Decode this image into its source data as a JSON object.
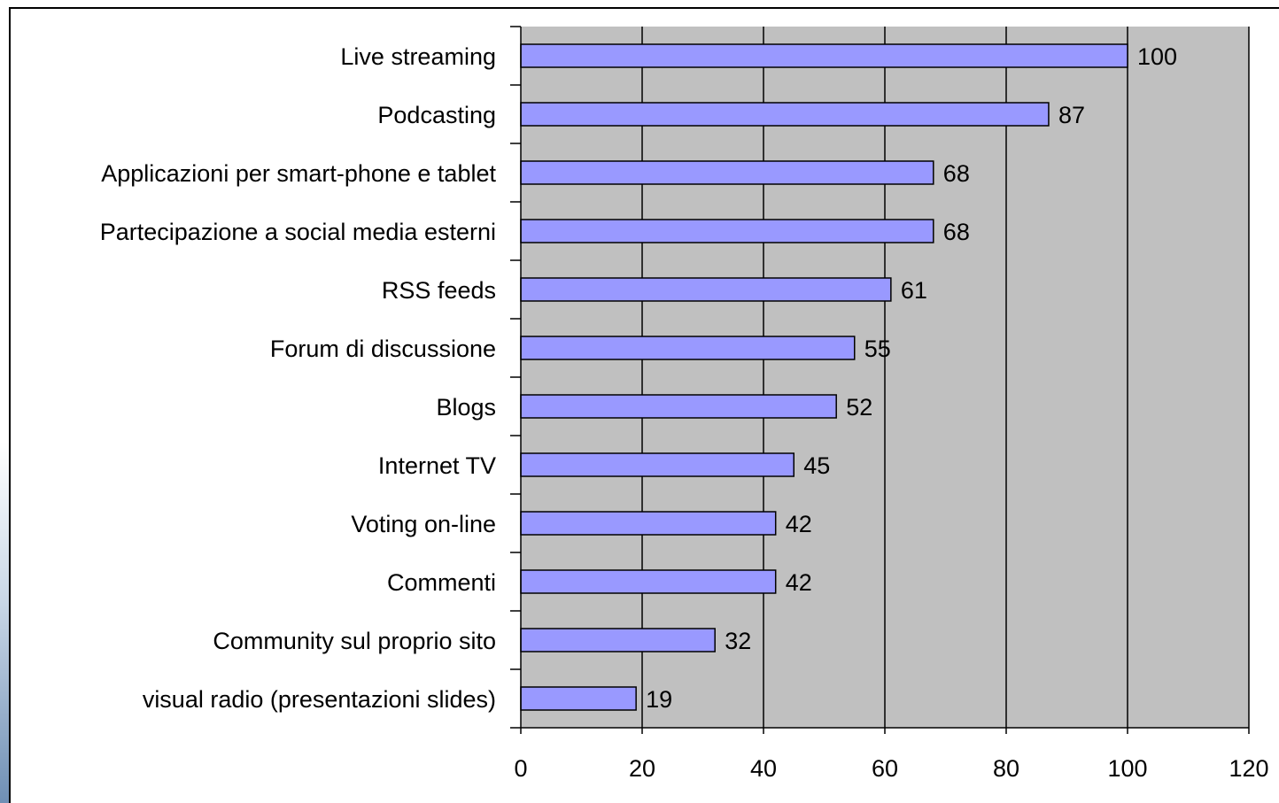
{
  "chart_data": {
    "type": "bar",
    "orientation": "horizontal",
    "title": "",
    "xlabel": "",
    "ylabel": "",
    "xlim": [
      0,
      120
    ],
    "x_ticks": [
      0,
      20,
      40,
      60,
      80,
      100,
      120
    ],
    "grid": "vertical",
    "legend": "none",
    "categories": [
      "Live streaming",
      "Podcasting",
      "Applicazioni per smart-phone e tablet",
      "Partecipazione a social media esterni",
      "RSS feeds",
      "Forum di discussione",
      "Blogs",
      "Internet TV",
      "Voting on-line",
      "Commenti",
      "Community sul proprio sito",
      "visual radio (presentazioni slides)"
    ],
    "values": [
      100,
      87,
      68,
      68,
      61,
      55,
      52,
      45,
      42,
      42,
      32,
      19
    ],
    "colors": {
      "bar_fill": "#9999ff",
      "bar_stroke": "#000000",
      "plot_background": "#c0c0c0",
      "gridline": "#000000"
    }
  }
}
